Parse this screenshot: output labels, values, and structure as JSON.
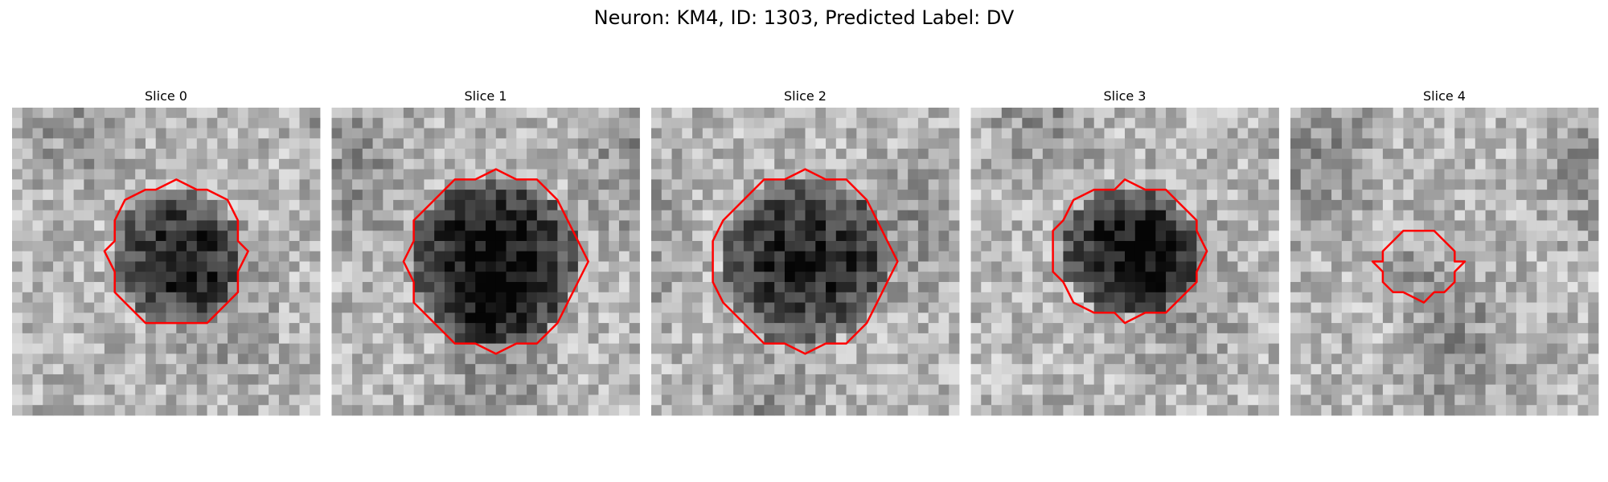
{
  "title": "Neuron: KM4, ID: 1303, Predicted Label: DV",
  "panels": [
    {
      "title": "Slice 0"
    },
    {
      "title": "Slice 1"
    },
    {
      "title": "Slice 2"
    },
    {
      "title": "Slice 3"
    },
    {
      "title": "Slice 4"
    }
  ]
}
